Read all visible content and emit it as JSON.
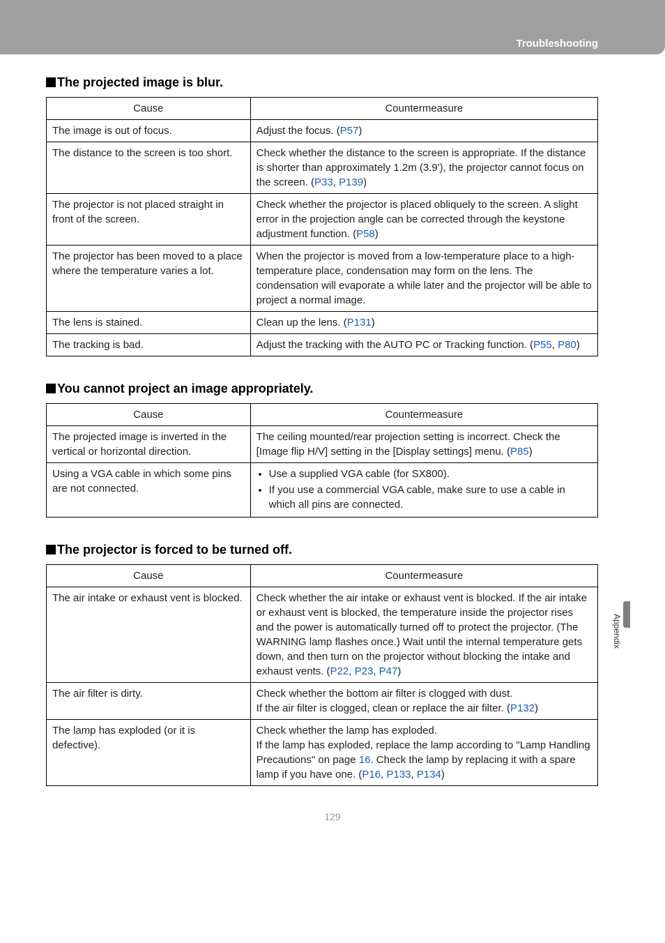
{
  "header": {
    "title": "Troubleshooting"
  },
  "side_tab": "Appendix",
  "page_number": "129",
  "link_color": "#1a5fb4",
  "sections": [
    {
      "title": "The projected image is blur.",
      "columns": [
        "Cause",
        "Countermeasure"
      ],
      "rows": [
        {
          "cause": "The image is out of focus.",
          "counter_parts": [
            {
              "text": "Adjust the focus. ("
            },
            {
              "text": "P57",
              "link": true
            },
            {
              "text": ")"
            }
          ]
        },
        {
          "cause": "The distance to the screen is too short.",
          "counter_parts": [
            {
              "text": "Check whether the distance to the screen is appropriate. If the distance is shorter than approximately 1.2m (3.9'), the projector cannot focus on the screen. ("
            },
            {
              "text": "P33",
              "link": true
            },
            {
              "text": ", "
            },
            {
              "text": "P139",
              "link": true
            },
            {
              "text": ")"
            }
          ]
        },
        {
          "cause": "The projector is not placed straight in front of the screen.",
          "counter_parts": [
            {
              "text": "Check whether the projector is placed obliquely to the screen. A slight error in the projection angle can be corrected through the keystone adjustment function. ("
            },
            {
              "text": "P58",
              "link": true
            },
            {
              "text": ")"
            }
          ]
        },
        {
          "cause": "The projector has been moved to a place where the temperature varies a lot.",
          "counter_parts": [
            {
              "text": "When the projector is moved from a low-temperature place to a high-temperature place, condensation may form on the lens. The condensation will evaporate a while later and the projector will be able to project a normal image."
            }
          ]
        },
        {
          "cause": "The lens is stained.",
          "counter_parts": [
            {
              "text": "Clean up the lens. ("
            },
            {
              "text": "P131",
              "link": true
            },
            {
              "text": ")"
            }
          ]
        },
        {
          "cause": "The tracking is bad.",
          "counter_parts": [
            {
              "text": "Adjust the tracking with the AUTO PC or Tracking function. ("
            },
            {
              "text": "P55",
              "link": true
            },
            {
              "text": ", "
            },
            {
              "text": "P80",
              "link": true
            },
            {
              "text": ")"
            }
          ]
        }
      ]
    },
    {
      "title": "You cannot project an image appropriately.",
      "columns": [
        "Cause",
        "Countermeasure"
      ],
      "rows": [
        {
          "cause": "The projected image is inverted in the vertical or horizontal direction.",
          "counter_parts": [
            {
              "text": "The ceiling mounted/rear projection setting is incorrect. Check the [Image flip H/V] setting in the [Display settings] menu. ("
            },
            {
              "text": "P85",
              "link": true
            },
            {
              "text": ")"
            }
          ]
        },
        {
          "cause": "Using a VGA cable in which some pins are not connected.",
          "bullets": [
            "Use a supplied VGA cable (for SX800).",
            "If you use a commercial VGA cable, make sure to use a cable in which all pins are connected."
          ]
        }
      ]
    },
    {
      "title": "The projector is forced to be turned off.",
      "columns": [
        "Cause",
        "Countermeasure"
      ],
      "rows": [
        {
          "cause": "The air intake or exhaust vent is blocked.",
          "counter_parts": [
            {
              "text": "Check whether the air intake or exhaust vent is blocked. If the air intake or exhaust vent is blocked, the temperature inside the projector rises and the power is automatically turned off to protect the projector. (The WARNING lamp flashes once.) Wait until the internal temperature gets down, and then turn on the projector without blocking the intake and exhaust vents. ("
            },
            {
              "text": "P22",
              "link": true
            },
            {
              "text": ", "
            },
            {
              "text": "P23",
              "link": true
            },
            {
              "text": ", "
            },
            {
              "text": "P47",
              "link": true
            },
            {
              "text": ")"
            }
          ]
        },
        {
          "cause": "The air filter is dirty.",
          "counter_parts": [
            {
              "text": "Check whether the bottom air filter is clogged with dust.\nIf the air filter is clogged, clean or replace the air filter. ("
            },
            {
              "text": "P132",
              "link": true
            },
            {
              "text": ")"
            }
          ]
        },
        {
          "cause": "The lamp has exploded (or it is defective).",
          "counter_parts": [
            {
              "text": "Check whether the lamp has exploded.\nIf the lamp has exploded, replace the lamp according to \"Lamp Handling Precautions\" on page "
            },
            {
              "text": "16",
              "link": true
            },
            {
              "text": ". Check the lamp by replacing it with a spare lamp if you have one. ("
            },
            {
              "text": "P16",
              "link": true
            },
            {
              "text": ", "
            },
            {
              "text": "P133",
              "link": true
            },
            {
              "text": ", "
            },
            {
              "text": "P134",
              "link": true
            },
            {
              "text": ")"
            }
          ]
        }
      ]
    }
  ]
}
